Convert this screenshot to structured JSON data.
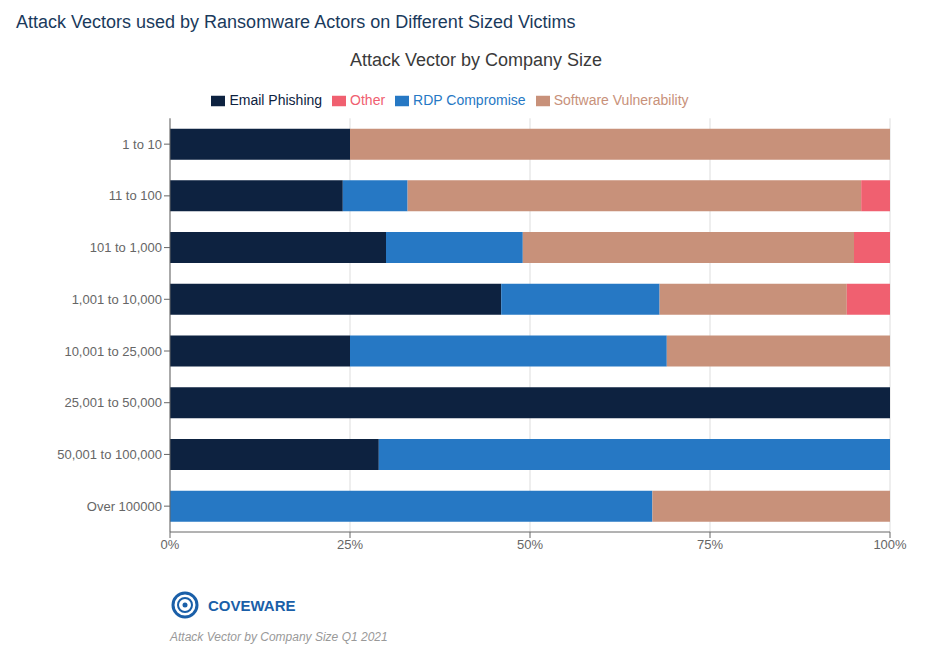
{
  "chart_data": {
    "type": "bar",
    "orientation": "horizontal",
    "stacked": true,
    "title": "Attack Vectors used by Ransomware Actors on Different Sized Victims",
    "subtitle": "Attack Vector by Company Size",
    "annotations": [
      "Attack Vector by Company Size Q1 2021",
      "COVEWARE"
    ],
    "categories": [
      "1 to 10",
      "11 to 100",
      "101 to 1,000",
      "1,001 to 10,000",
      "10,001 to 25,000",
      "25,001 to 50,000",
      "50,001 to 100,000",
      "Over 100000"
    ],
    "series": [
      {
        "name": "Email Phishing",
        "color": "#0d2240",
        "values": [
          25,
          24,
          30,
          46,
          25,
          100,
          29,
          0
        ]
      },
      {
        "name": "RDP Compromise",
        "color": "#2678c4",
        "values": [
          0,
          9,
          19,
          22,
          44,
          0,
          71,
          67
        ]
      },
      {
        "name": "Software Vulnerability",
        "color": "#c8917a",
        "values": [
          75,
          63,
          46,
          26,
          31,
          0,
          0,
          33
        ]
      },
      {
        "name": "Other",
        "color": "#f06070",
        "values": [
          0,
          4,
          5,
          6,
          0,
          0,
          0,
          0
        ]
      }
    ],
    "xlim": [
      0,
      100
    ],
    "xticks": [
      {
        "value": 0,
        "label": "0%"
      },
      {
        "value": 25,
        "label": "25%"
      },
      {
        "value": 50,
        "label": "50%"
      },
      {
        "value": 75,
        "label": "75%"
      },
      {
        "value": 100,
        "label": "100%"
      }
    ],
    "grid": true,
    "legend": "top"
  }
}
